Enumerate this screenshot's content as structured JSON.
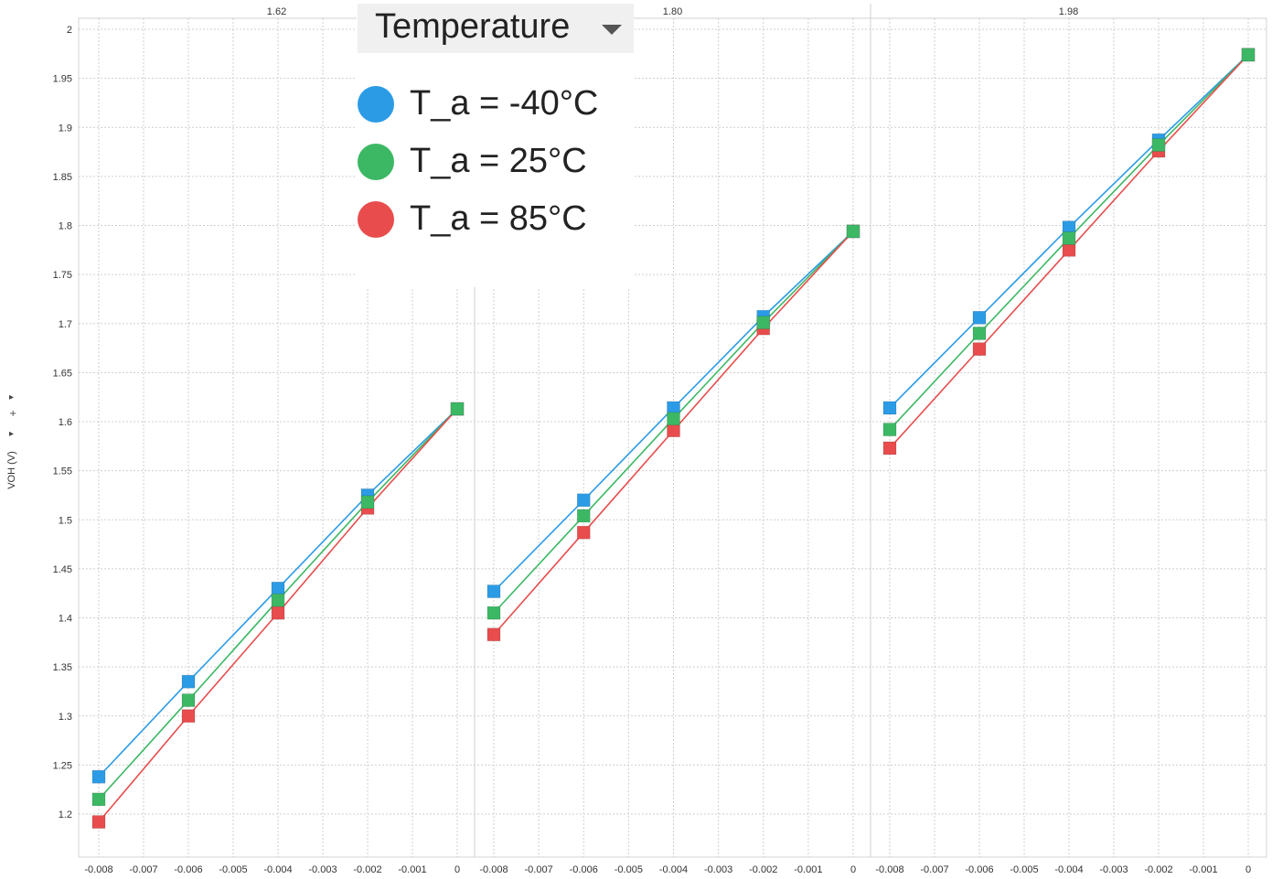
{
  "chart_data": {
    "type": "line",
    "ylabel": "VOH (V)",
    "ylim": [
      1.175,
      2.01
    ],
    "y_ticks": [
      "1.2",
      "1.25",
      "1.3",
      "1.35",
      "1.4",
      "1.45",
      "1.5",
      "1.55",
      "1.6",
      "1.65",
      "1.7",
      "1.75",
      "1.8",
      "1.85",
      "1.9",
      "1.95",
      "2"
    ],
    "x_ticks": [
      "-0.008",
      "-0.007",
      "-0.006",
      "-0.005",
      "-0.004",
      "-0.003",
      "-0.002",
      "-0.001",
      "0"
    ],
    "legend": {
      "title": "Temperature",
      "entries": [
        "T_a = -40°C",
        "T_a = 25°C",
        "T_a = 85°C"
      ]
    },
    "colors": {
      "-40": "#2b9be6",
      "25": "#3cb864",
      "85": "#e84c4c"
    },
    "panels": [
      {
        "header": "1.62",
        "x": [
          -0.008,
          -0.006,
          -0.004,
          -0.002,
          0
        ],
        "series": [
          {
            "name": "T_a = -40°C",
            "values": [
              1.238,
              1.335,
              1.43,
              1.525,
              1.613
            ]
          },
          {
            "name": "T_a = 25°C",
            "values": [
              1.215,
              1.316,
              1.418,
              1.518,
              1.613
            ]
          },
          {
            "name": "T_a = 85°C",
            "values": [
              1.192,
              1.3,
              1.405,
              1.512,
              1.613
            ]
          }
        ]
      },
      {
        "header": "1.80",
        "x": [
          -0.008,
          -0.006,
          -0.004,
          -0.002,
          0
        ],
        "series": [
          {
            "name": "T_a = -40°C",
            "values": [
              1.427,
              1.52,
              1.614,
              1.707,
              1.794
            ]
          },
          {
            "name": "T_a = 25°C",
            "values": [
              1.405,
              1.504,
              1.603,
              1.701,
              1.794
            ]
          },
          {
            "name": "T_a = 85°C",
            "values": [
              1.383,
              1.487,
              1.591,
              1.695,
              1.794
            ]
          }
        ]
      },
      {
        "header": "1.98",
        "x": [
          -0.008,
          -0.006,
          -0.004,
          -0.002,
          0
        ],
        "series": [
          {
            "name": "T_a = -40°C",
            "values": [
              1.614,
              1.706,
              1.798,
              1.887,
              1.974
            ]
          },
          {
            "name": "T_a = 25°C",
            "values": [
              1.592,
              1.69,
              1.787,
              1.882,
              1.974
            ]
          },
          {
            "name": "T_a = 85°C",
            "values": [
              1.573,
              1.674,
              1.775,
              1.876,
              1.974
            ]
          }
        ]
      }
    ],
    "grid": true
  },
  "side_controls": {
    "expand_icon": "triangle-right-icon",
    "add_icon": "plus-icon",
    "plus_label": "+"
  }
}
